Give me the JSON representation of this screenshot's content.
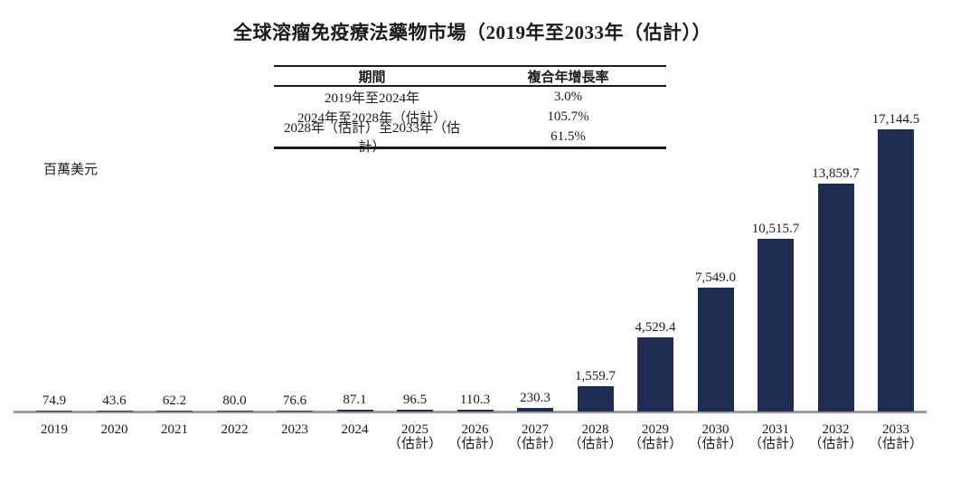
{
  "figure": {
    "title": "全球溶瘤免疫療法藥物市場（2019年至2033年（估計））"
  },
  "cagr_table": {
    "headers": {
      "period": "期間",
      "cagr": "複合年增長率"
    },
    "rows": [
      {
        "period": "2019年至2024年",
        "cagr": "3.0%"
      },
      {
        "period": "2024年至2028年（估計）",
        "cagr": "105.7%"
      },
      {
        "period": "2028年（估計）至2033年（估計）",
        "cagr": "61.5%"
      }
    ]
  },
  "chart_data": {
    "type": "bar",
    "title": "全球溶瘤免疫療法藥物市場（2019年至2033年（估計））",
    "ylabel": "百萬美元",
    "categories": [
      "2019",
      "2020",
      "2021",
      "2022",
      "2023",
      "2024",
      "2025",
      "2026",
      "2027",
      "2028",
      "2029",
      "2030",
      "2031",
      "2032",
      "2033"
    ],
    "estimate_suffix": "（估計）",
    "estimate_from_index": 6,
    "values": [
      74.9,
      43.6,
      62.2,
      80.0,
      76.6,
      87.1,
      96.5,
      110.3,
      230.3,
      1559.7,
      4529.4,
      7549.0,
      10515.7,
      13859.7,
      17144.5
    ],
    "value_labels": [
      "74.9",
      "43.6",
      "62.2",
      "80.0",
      "76.6",
      "87.1",
      "96.5",
      "110.3",
      "230.3",
      "1,559.7",
      "4,529.4",
      "7,549.0",
      "10,515.7",
      "13,859.7",
      "17,144.5"
    ],
    "ylim": [
      0,
      17500
    ],
    "grid": false,
    "legend_position": "none"
  },
  "colors": {
    "bar": "#1e2b52",
    "axis": "#9d9da1",
    "text": "#1a1a1a"
  }
}
